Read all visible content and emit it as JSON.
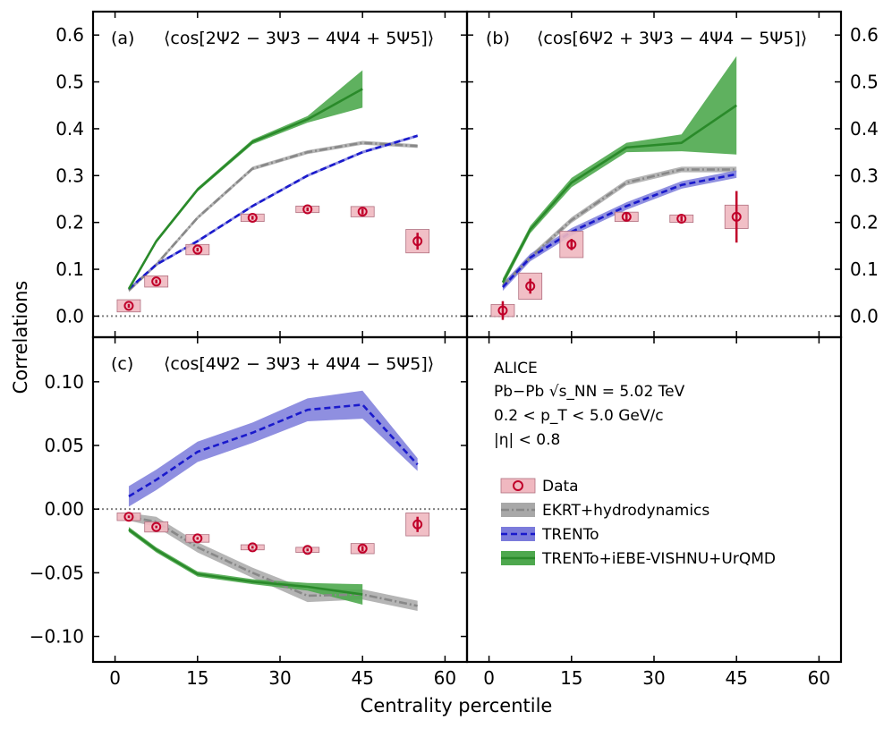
{
  "figure": {
    "ylabel": "Correlations",
    "xlabel": "Centrality percentile",
    "x_ticks": [
      0,
      15,
      30,
      45,
      60
    ],
    "x_tick_labels": [
      "0",
      "15",
      "30",
      "45",
      "60"
    ]
  },
  "colors": {
    "data": "#c0002a",
    "data_box": "#f0b8c0",
    "ekrt_line": "#888888",
    "ekrt_band": "#a8a8a8",
    "trento_line": "#1a1acc",
    "trento_band": "#7b7bdb",
    "vishnu_line": "#2a8a2a",
    "vishnu_band": "#4ea84e",
    "zero_line": "#808080"
  },
  "info": {
    "experiment": "ALICE",
    "system": "Pb−Pb √s_NN = 5.02 TeV",
    "pt_range": "0.2 < p_T < 5.0 GeV/c",
    "eta_range": "|η| < 0.8"
  },
  "legend": [
    {
      "key": "data",
      "label": "Data"
    },
    {
      "key": "ekrt",
      "label": "EKRT+hydrodynamics"
    },
    {
      "key": "trento",
      "label": "TRENTo"
    },
    {
      "key": "vishnu",
      "label": "TRENTo+iEBE-VISHNU+UrQMD"
    }
  ],
  "chart_data": [
    {
      "panel": "a",
      "label": "(a)",
      "title": "⟨cos[2Ψ2 − 3Ψ3 − 4Ψ4 + 5Ψ5]⟩",
      "type": "line",
      "xlim": [
        -4,
        64
      ],
      "ylim": [
        -0.045,
        0.65
      ],
      "y_ticks": [
        0.0,
        0.1,
        0.2,
        0.3,
        0.4,
        0.5,
        0.6
      ],
      "y_tick_labels": [
        "0.0",
        "0.1",
        "0.2",
        "0.3",
        "0.4",
        "0.5",
        "0.6"
      ],
      "y_axis_side": "left",
      "data": {
        "x": [
          2.5,
          7.5,
          15,
          25,
          35,
          45,
          55
        ],
        "y": [
          0.022,
          0.074,
          0.142,
          0.21,
          0.228,
          0.223,
          0.16
        ],
        "stat": [
          0.004,
          0.004,
          0.004,
          0.004,
          0.004,
          0.006,
          0.018
        ],
        "sys": [
          0.013,
          0.012,
          0.011,
          0.008,
          0.007,
          0.011,
          0.025
        ]
      },
      "series": [
        {
          "name": "EKRT+hydrodynamics",
          "key": "ekrt",
          "x": [
            2.5,
            7.5,
            15,
            25,
            35,
            45,
            55
          ],
          "y": [
            0.055,
            0.11,
            0.21,
            0.315,
            0.35,
            0.37,
            0.363
          ],
          "err": [
            0.004,
            0.004,
            0.004,
            0.004,
            0.004,
            0.004,
            0.004
          ]
        },
        {
          "name": "TRENTo",
          "key": "trento",
          "x": [
            2.5,
            7.5,
            15,
            25,
            35,
            45,
            55
          ],
          "y": [
            0.058,
            0.11,
            0.16,
            0.235,
            0.3,
            0.35,
            0.385
          ],
          "err": [
            0.003,
            0.003,
            0.003,
            0.003,
            0.003,
            0.003,
            0.003
          ]
        },
        {
          "name": "TRENTo+iEBE-VISHNU+UrQMD",
          "key": "vishnu",
          "x": [
            2.5,
            7.5,
            15,
            25,
            35,
            45
          ],
          "y": [
            0.058,
            0.16,
            0.27,
            0.372,
            0.42,
            0.485
          ],
          "err": [
            0.004,
            0.004,
            0.004,
            0.005,
            0.007,
            0.04
          ]
        }
      ]
    },
    {
      "panel": "b",
      "label": "(b)",
      "title": "⟨cos[6Ψ2 + 3Ψ3 − 4Ψ4 − 5Ψ5]⟩",
      "type": "line",
      "xlim": [
        -4,
        64
      ],
      "ylim": [
        -0.045,
        0.65
      ],
      "y_ticks": [
        0.0,
        0.1,
        0.2,
        0.3,
        0.4,
        0.5,
        0.6
      ],
      "y_tick_labels": [
        "0.0",
        "0.1",
        "0.2",
        "0.3",
        "0.4",
        "0.5",
        "0.6"
      ],
      "y_axis_side": "right",
      "data": {
        "x": [
          2.5,
          7.5,
          15,
          25,
          35,
          45
        ],
        "y": [
          0.012,
          0.064,
          0.153,
          0.212,
          0.208,
          0.212
        ],
        "stat": [
          0.02,
          0.016,
          0.012,
          0.008,
          0.006,
          0.055
        ],
        "sys": [
          0.013,
          0.028,
          0.028,
          0.01,
          0.008,
          0.025
        ]
      },
      "series": [
        {
          "name": "EKRT+hydrodynamics",
          "key": "ekrt",
          "x": [
            2.5,
            7.5,
            15,
            25,
            35,
            45
          ],
          "y": [
            0.065,
            0.125,
            0.205,
            0.285,
            0.313,
            0.313
          ],
          "err": [
            0.006,
            0.006,
            0.006,
            0.006,
            0.006,
            0.006
          ]
        },
        {
          "name": "TRENTo",
          "key": "trento",
          "x": [
            2.5,
            7.5,
            15,
            25,
            35,
            45
          ],
          "y": [
            0.062,
            0.125,
            0.18,
            0.235,
            0.28,
            0.303
          ],
          "err": [
            0.008,
            0.008,
            0.008,
            0.008,
            0.008,
            0.008
          ]
        },
        {
          "name": "TRENTo+iEBE-VISHNU+UrQMD",
          "key": "vishnu",
          "x": [
            2.5,
            7.5,
            15,
            25,
            35,
            45
          ],
          "y": [
            0.072,
            0.185,
            0.285,
            0.36,
            0.37,
            0.45
          ],
          "err": [
            0.008,
            0.008,
            0.01,
            0.01,
            0.018,
            0.105
          ]
        }
      ]
    },
    {
      "panel": "c",
      "label": "(c)",
      "title": "⟨cos[4Ψ2 − 3Ψ3 + 4Ψ4 − 5Ψ5]⟩",
      "type": "line",
      "xlim": [
        -4,
        64
      ],
      "ylim": [
        -0.12,
        0.135
      ],
      "y_ticks": [
        -0.1,
        -0.05,
        0.0,
        0.05,
        0.1
      ],
      "y_tick_labels": [
        "−0.10",
        "−0.05",
        "0.00",
        "0.05",
        "0.10"
      ],
      "y_axis_side": "left",
      "data": {
        "x": [
          2.5,
          7.5,
          15,
          25,
          35,
          45,
          55
        ],
        "y": [
          -0.006,
          -0.014,
          -0.023,
          -0.03,
          -0.032,
          -0.031,
          -0.012
        ],
        "stat": [
          0.001,
          0.001,
          0.001,
          0.001,
          0.001,
          0.002,
          0.006
        ],
        "sys": [
          0.003,
          0.004,
          0.003,
          0.002,
          0.002,
          0.004,
          0.009
        ]
      },
      "series": [
        {
          "name": "EKRT+hydrodynamics",
          "key": "ekrt",
          "x": [
            2.5,
            7.5,
            15,
            25,
            35,
            45,
            55
          ],
          "y": [
            -0.006,
            -0.01,
            -0.03,
            -0.05,
            -0.068,
            -0.067,
            -0.076
          ],
          "err": [
            0.003,
            0.004,
            0.004,
            0.004,
            0.005,
            0.004,
            0.004
          ]
        },
        {
          "name": "TRENTo",
          "key": "trento",
          "x": [
            2.5,
            7.5,
            15,
            25,
            35,
            45,
            55
          ],
          "y": [
            0.01,
            0.023,
            0.045,
            0.06,
            0.078,
            0.082,
            0.035
          ],
          "err": [
            0.008,
            0.008,
            0.008,
            0.008,
            0.009,
            0.011,
            0.005
          ]
        },
        {
          "name": "TRENTo+iEBE-VISHNU+UrQMD",
          "key": "vishnu",
          "x": [
            2.5,
            7.5,
            15,
            25,
            35,
            45
          ],
          "y": [
            -0.016,
            -0.032,
            -0.051,
            -0.057,
            -0.061,
            -0.067
          ],
          "err": [
            0.002,
            0.002,
            0.002,
            0.002,
            0.003,
            0.008
          ]
        }
      ]
    }
  ]
}
